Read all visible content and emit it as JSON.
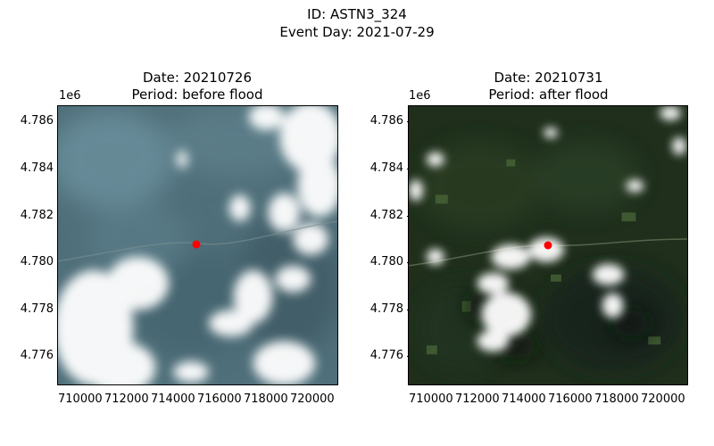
{
  "figure": {
    "suptitle_line1": "ID: ASTN3_324",
    "suptitle_line2": "Event Day: 2021-07-29"
  },
  "panels": [
    {
      "title_line1": "Date: 20210726",
      "title_line2": "Period: before flood",
      "y_exponent": "1e6",
      "yticks": [
        "4.786",
        "4.784",
        "4.782",
        "4.780",
        "4.778",
        "4.776"
      ],
      "xticks": [
        "710000",
        "712000",
        "714000",
        "716000",
        "718000",
        "720000"
      ],
      "marker_color": "#ff0000"
    },
    {
      "title_line1": "Date: 20210731",
      "title_line2": "Period: after flood",
      "y_exponent": "1e6",
      "yticks": [
        "4.786",
        "4.784",
        "4.782",
        "4.780",
        "4.778",
        "4.776"
      ],
      "xticks": [
        "710000",
        "712000",
        "714000",
        "716000",
        "718000",
        "720000"
      ],
      "marker_color": "#ff0000"
    }
  ]
}
